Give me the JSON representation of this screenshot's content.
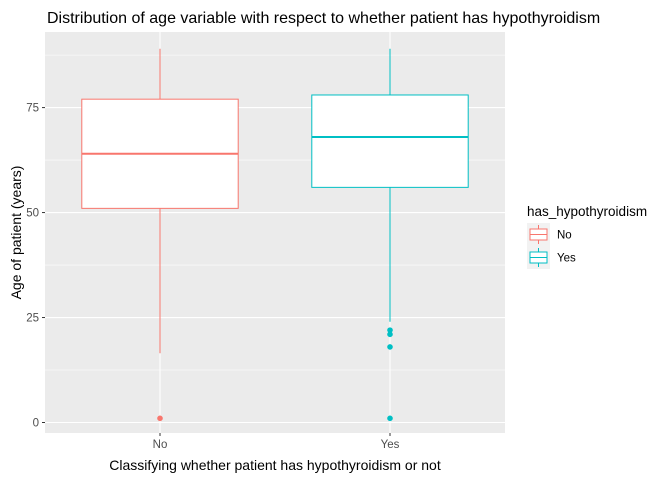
{
  "chart_data": {
    "type": "boxplot",
    "title": "Distribution of age variable with respect to whether patient has hypothyroidism",
    "xlabel": "Classifying whether patient has hypothyroidism or not",
    "ylabel": "Age of patient (years)",
    "categories": [
      "No",
      "Yes"
    ],
    "y_ticks": [
      0,
      25,
      50,
      75
    ],
    "ylim": [
      -2.5,
      93
    ],
    "grid": true,
    "legend": {
      "title": "has_hypothyroidism",
      "position": "right",
      "entries": [
        "No",
        "Yes"
      ]
    },
    "series": [
      {
        "name": "No",
        "color": "#F8766D",
        "whisker_low": 16.5,
        "q1": 51,
        "median": 64,
        "q3": 77,
        "whisker_high": 89,
        "outliers": [
          1
        ]
      },
      {
        "name": "Yes",
        "color": "#00BFC4",
        "whisker_low": 24,
        "q1": 56,
        "median": 68,
        "q3": 78,
        "whisker_high": 89,
        "outliers": [
          22,
          21,
          18,
          1
        ]
      }
    ]
  }
}
